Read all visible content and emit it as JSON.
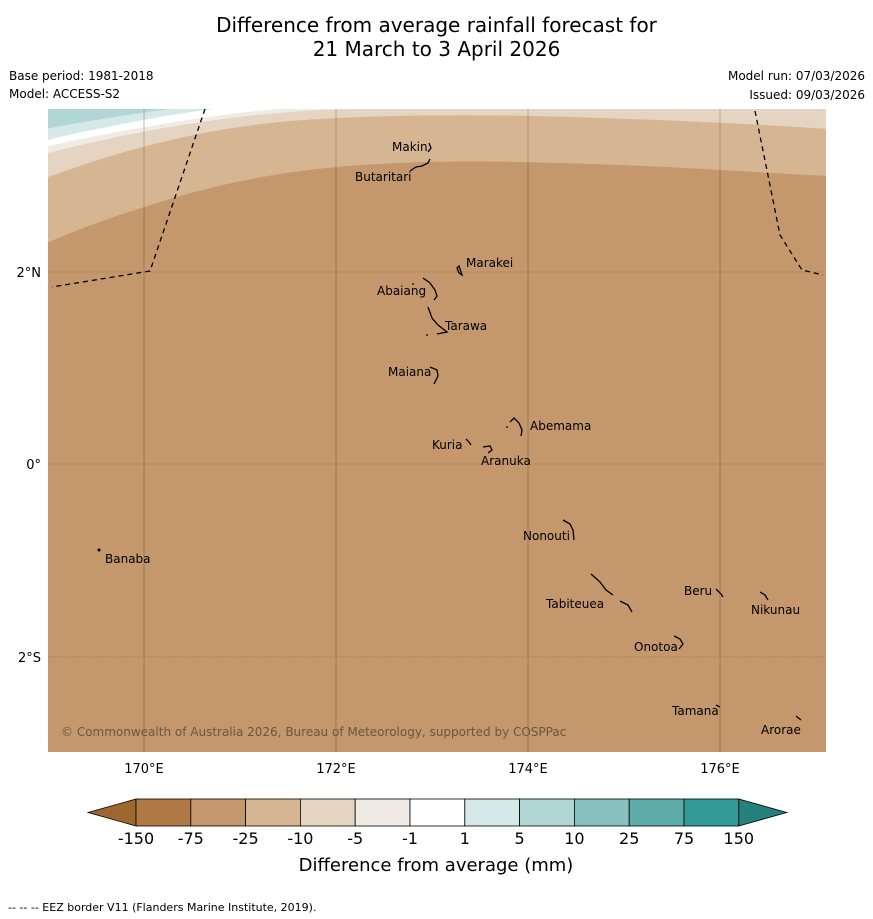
{
  "header": {
    "title_line1": "Difference from average rainfall forecast for",
    "title_line2": "21 March to 3 April 2026",
    "base_period": "Base period: 1981-2018",
    "model": "Model: ACCESS-S2",
    "model_run": "Model run: 07/03/2026",
    "issued": "Issued: 09/03/2026"
  },
  "map": {
    "lat_ticks": [
      "2°N",
      "0°",
      "2°S"
    ],
    "lon_ticks": [
      "170°E",
      "172°E",
      "174°E",
      "176°E"
    ],
    "copyright": "© Commonwealth of Australia 2026, Bureau of Meteorology, supported by COSPPac",
    "islands": [
      {
        "name": "Makin",
        "lon": 172.95,
        "lat": 3.27
      },
      {
        "name": "Butaritari",
        "lon": 172.85,
        "lat": 3.0
      },
      {
        "name": "Marakei",
        "lon": 173.3,
        "lat": 2.0
      },
      {
        "name": "Abaiang",
        "lon": 173.0,
        "lat": 1.8
      },
      {
        "name": "Tarawa",
        "lon": 173.05,
        "lat": 1.4
      },
      {
        "name": "Maiana",
        "lon": 173.0,
        "lat": 0.95
      },
      {
        "name": "Abemama",
        "lon": 173.85,
        "lat": 0.4
      },
      {
        "name": "Kuria",
        "lon": 173.4,
        "lat": 0.22
      },
      {
        "name": "Aranuka",
        "lon": 173.6,
        "lat": 0.16
      },
      {
        "name": "Nonouti",
        "lon": 174.45,
        "lat": -0.65
      },
      {
        "name": "Banaba",
        "lon": 169.55,
        "lat": -0.86
      },
      {
        "name": "Tabiteuea",
        "lon": 174.8,
        "lat": -1.3
      },
      {
        "name": "Beru",
        "lon": 175.98,
        "lat": -1.3
      },
      {
        "name": "Nikunau",
        "lon": 176.45,
        "lat": -1.35
      },
      {
        "name": "Onotoa",
        "lon": 175.55,
        "lat": -1.85
      },
      {
        "name": "Tamana",
        "lon": 175.98,
        "lat": -2.5
      },
      {
        "name": "Arorae",
        "lon": 176.82,
        "lat": -2.65
      }
    ]
  },
  "colorbar": {
    "labels": [
      "-150",
      "-75",
      "-25",
      "-10",
      "-5",
      "-1",
      "1",
      "5",
      "10",
      "25",
      "75",
      "150"
    ],
    "colors": [
      "#b07a46",
      "#c4976c",
      "#d6b593",
      "#e5d4c1",
      "#f1ebe5",
      "#ffffff",
      "#d5e9e8",
      "#b0d6d5",
      "#86c1c0",
      "#5eacaa",
      "#349a98"
    ],
    "under_color": "#9c6830",
    "over_color": "#25807e",
    "title": "Difference from average (mm)"
  },
  "footer": {
    "eez_note": "--  --  -- EEZ border V11 (Flanders Marine Institute, 2019)."
  }
}
